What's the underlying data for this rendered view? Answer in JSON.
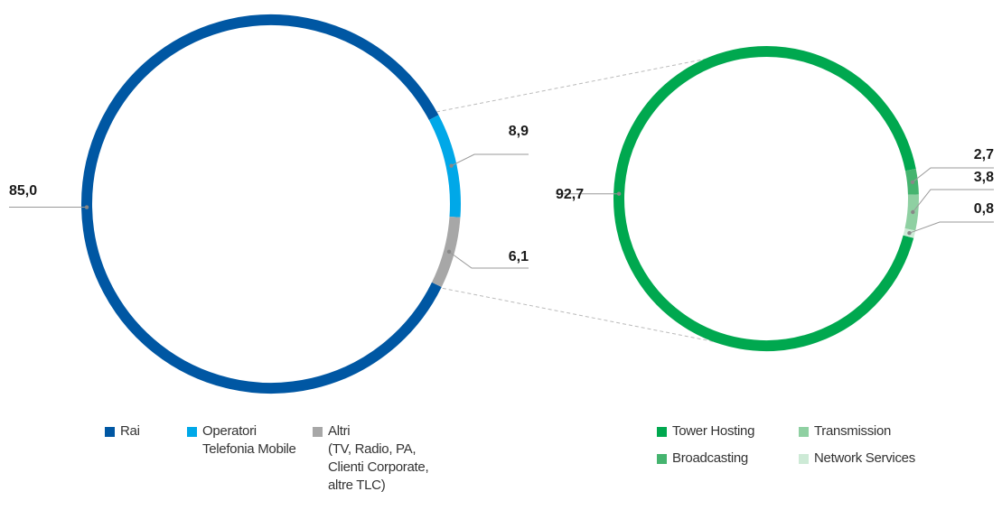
{
  "chart_data": [
    {
      "type": "donut",
      "categories": [
        "Rai",
        "Operatori\nTelefonia Mobile",
        "Altri\n(TV, Radio, PA,\nClienti Corporate,\naltre TLC)"
      ],
      "values": [
        85.0,
        8.9,
        6.1
      ],
      "value_labels": [
        "85,0",
        "8,9",
        "6,1"
      ],
      "colors": [
        "#0057a3",
        "#00a8e8",
        "#a7a7a7"
      ]
    },
    {
      "type": "donut",
      "categories": [
        "Tower Hosting",
        "Broadcasting",
        "Transmission",
        "Network Services"
      ],
      "values": [
        92.7,
        2.7,
        3.8,
        0.8
      ],
      "value_labels": [
        "92,7",
        "2,7",
        "3,8",
        "0,8"
      ],
      "colors": [
        "#00a84f",
        "#45b46f",
        "#8fd0a2",
        "#cdeAd6"
      ]
    }
  ]
}
